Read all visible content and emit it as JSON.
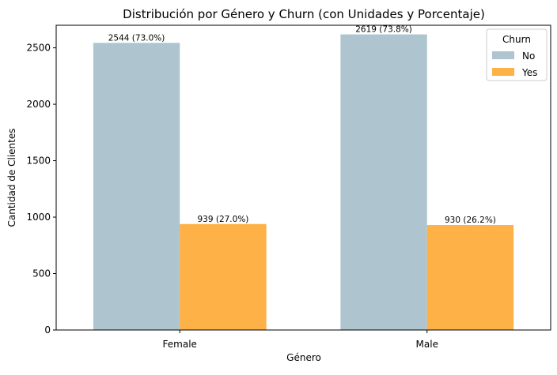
{
  "chart_data": {
    "type": "bar",
    "title": "Distribución por Género y Churn (con Unidades y Porcentaje)",
    "xlabel": "Género",
    "ylabel": "Cantidad de Clientes",
    "categories": [
      "Female",
      "Male"
    ],
    "series": [
      {
        "name": "No",
        "color": "#aec5cf",
        "values": [
          2544,
          2619
        ],
        "labels": [
          "2544 (73.0%)",
          "2619 (73.8%)"
        ]
      },
      {
        "name": "Yes",
        "color": "#fdb147",
        "values": [
          939,
          930
        ],
        "labels": [
          "939 (27.0%)",
          "930 (26.2%)"
        ]
      }
    ],
    "ylim": [
      0,
      2700
    ],
    "yticks": [
      0,
      500,
      1000,
      1500,
      2000,
      2500
    ],
    "grid": false,
    "legend": {
      "title": "Churn",
      "position": "top-right"
    }
  }
}
